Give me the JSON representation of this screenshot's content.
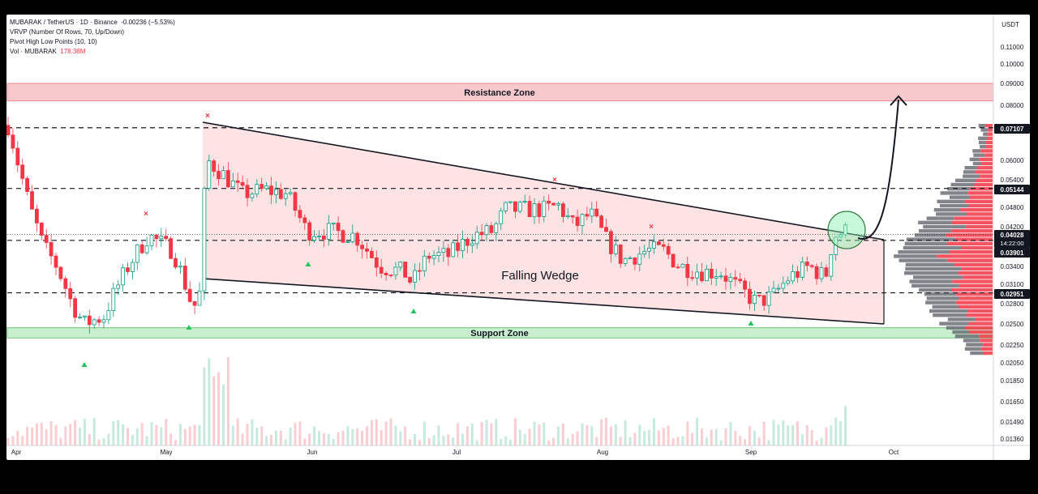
{
  "header": {
    "symbol_line": "MUBARAK / TetherUS · 1D · Binance",
    "change": "-0.00236 (−5.53%)",
    "indicator_vrvp": "VRVP (Number Of Rows, 70, Up/Down)",
    "indicator_pivot": "Pivot High Low Points (10, 10)",
    "vol_label": "Vol · MUBARAK",
    "vol_value": "178.38M"
  },
  "colors": {
    "up": "#089981",
    "down": "#f23645",
    "resistance_fill": "#f8c9cc",
    "support_fill": "#c9efcf",
    "wedge_fill": "#fde3e3",
    "profile_up": "#6b6f77",
    "profile_down": "#f23645"
  },
  "chart_data": {
    "type": "candlestick",
    "title": "MUBARAK / TetherUS · 1D · Binance",
    "currency_label": "USDT",
    "x_labels": [
      "Apr",
      "May",
      "Jun",
      "Jul",
      "Aug",
      "Sep",
      "Oct"
    ],
    "y_ticks": [
      "0.11000",
      "0.10000",
      "0.09000",
      "0.08000",
      "0.07107",
      "0.06000",
      "0.05400",
      "0.05144",
      "0.04800",
      "0.04200",
      "0.04028",
      "0.03901",
      "0.03400",
      "0.03100",
      "0.02951",
      "0.02800",
      "0.02500",
      "0.02250",
      "0.02050",
      "0.01850",
      "0.01650",
      "0.01490",
      "0.01360"
    ],
    "price_labels": [
      {
        "label": "0.07107",
        "style": "dark"
      },
      {
        "label": "0.05144",
        "style": "dark"
      },
      {
        "label": "0.04028",
        "style": "dark",
        "sub": "14:22:00"
      },
      {
        "label": "0.03901",
        "style": "dark"
      },
      {
        "label": "0.02951",
        "style": "dark"
      }
    ],
    "zones": [
      {
        "name": "Resistance Zone",
        "low": 0.082,
        "high": 0.09
      },
      {
        "name": "Support Zone",
        "low": 0.0232,
        "high": 0.0245
      }
    ],
    "pattern_label": "Falling Wedge",
    "horizontal_levels": [
      0.07107,
      0.05144,
      0.03901,
      0.02951
    ],
    "current_price": 0.04028,
    "scale": "log",
    "ylim": [
      0.0133,
      0.125
    ]
  }
}
